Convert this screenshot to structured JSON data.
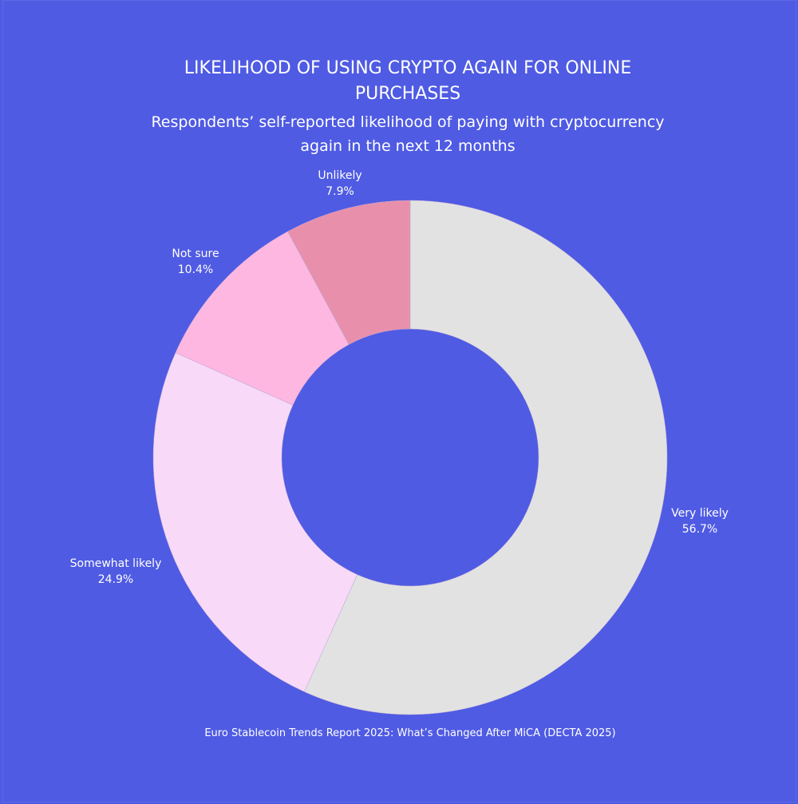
{
  "chart_data": {
    "type": "pie",
    "hole": 0.5,
    "title": "LIKELIHOOD OF USING CRYPTO AGAIN FOR ONLINE PURCHASES",
    "subtitle": "Respondents’ self-reported likelihood of paying with cryptocurrency again in the next 12 months",
    "source": "Euro Stablecoin Trends Report 2025: What’s Changed After MiCA (DECTA 2025)",
    "slices": [
      {
        "label": "Very likely",
        "value": 56.7,
        "text": "56.7%",
        "color": "#e2e2e2"
      },
      {
        "label": "Somewhat likely",
        "value": 24.9,
        "text": "24.9%",
        "color": "#f8d9f7"
      },
      {
        "label": "Not sure",
        "value": 10.4,
        "text": "10.4%",
        "color": "#fdb7e0"
      },
      {
        "label": "Unlikely",
        "value": 7.9,
        "text": "7.9%",
        "color": "#e890ab"
      }
    ],
    "background": "#4f5be3"
  }
}
